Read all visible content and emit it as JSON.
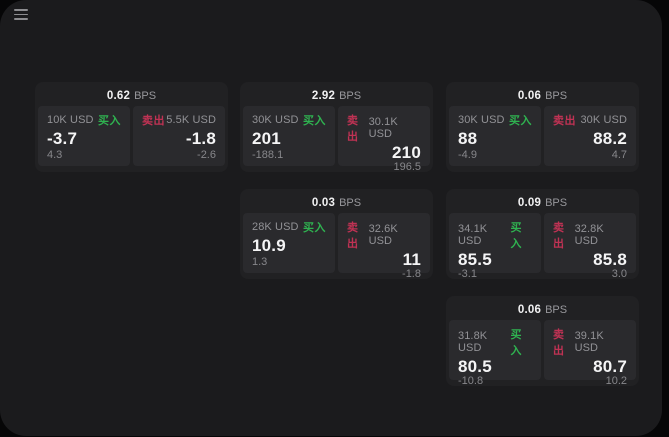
{
  "app": {
    "background": "#060607",
    "window_background": "#1b1b1d",
    "card_background": "#212123",
    "panel_background": "#2a2a2d",
    "accent_green": "#2fb250",
    "accent_red": "#c03254",
    "menu_icon": "hamburger-menu-icon"
  },
  "labels": {
    "bps_unit": "BPS",
    "buy": "买入",
    "sell": "卖出"
  },
  "cards": [
    {
      "bps": "0.62",
      "buy": {
        "amount": "10K USD",
        "price": "-3.7",
        "delta": "4.3"
      },
      "sell": {
        "amount": "5.5K USD",
        "price": "-1.8",
        "delta": "-2.6"
      }
    },
    {
      "bps": "2.92",
      "buy": {
        "amount": "30K USD",
        "price": "201",
        "delta": "-188.1"
      },
      "sell": {
        "amount": "30.1K USD",
        "price": "210",
        "delta": "196.5"
      }
    },
    {
      "bps": "0.06",
      "buy": {
        "amount": "30K USD",
        "price": "88",
        "delta": "-4.9"
      },
      "sell": {
        "amount": "30K USD",
        "price": "88.2",
        "delta": "4.7"
      }
    },
    {
      "bps": "0.03",
      "buy": {
        "amount": "28K USD",
        "price": "10.9",
        "delta": "1.3"
      },
      "sell": {
        "amount": "32.6K USD",
        "price": "11",
        "delta": "-1.8"
      }
    },
    {
      "bps": "0.09",
      "buy": {
        "amount": "34.1K USD",
        "price": "85.5",
        "delta": "-3.1"
      },
      "sell": {
        "amount": "32.8K USD",
        "price": "85.8",
        "delta": "3.0"
      }
    },
    {
      "bps": "0.06",
      "buy": {
        "amount": "31.8K USD",
        "price": "80.5",
        "delta": "-10.8"
      },
      "sell": {
        "amount": "39.1K USD",
        "price": "80.7",
        "delta": "10.2"
      }
    }
  ]
}
